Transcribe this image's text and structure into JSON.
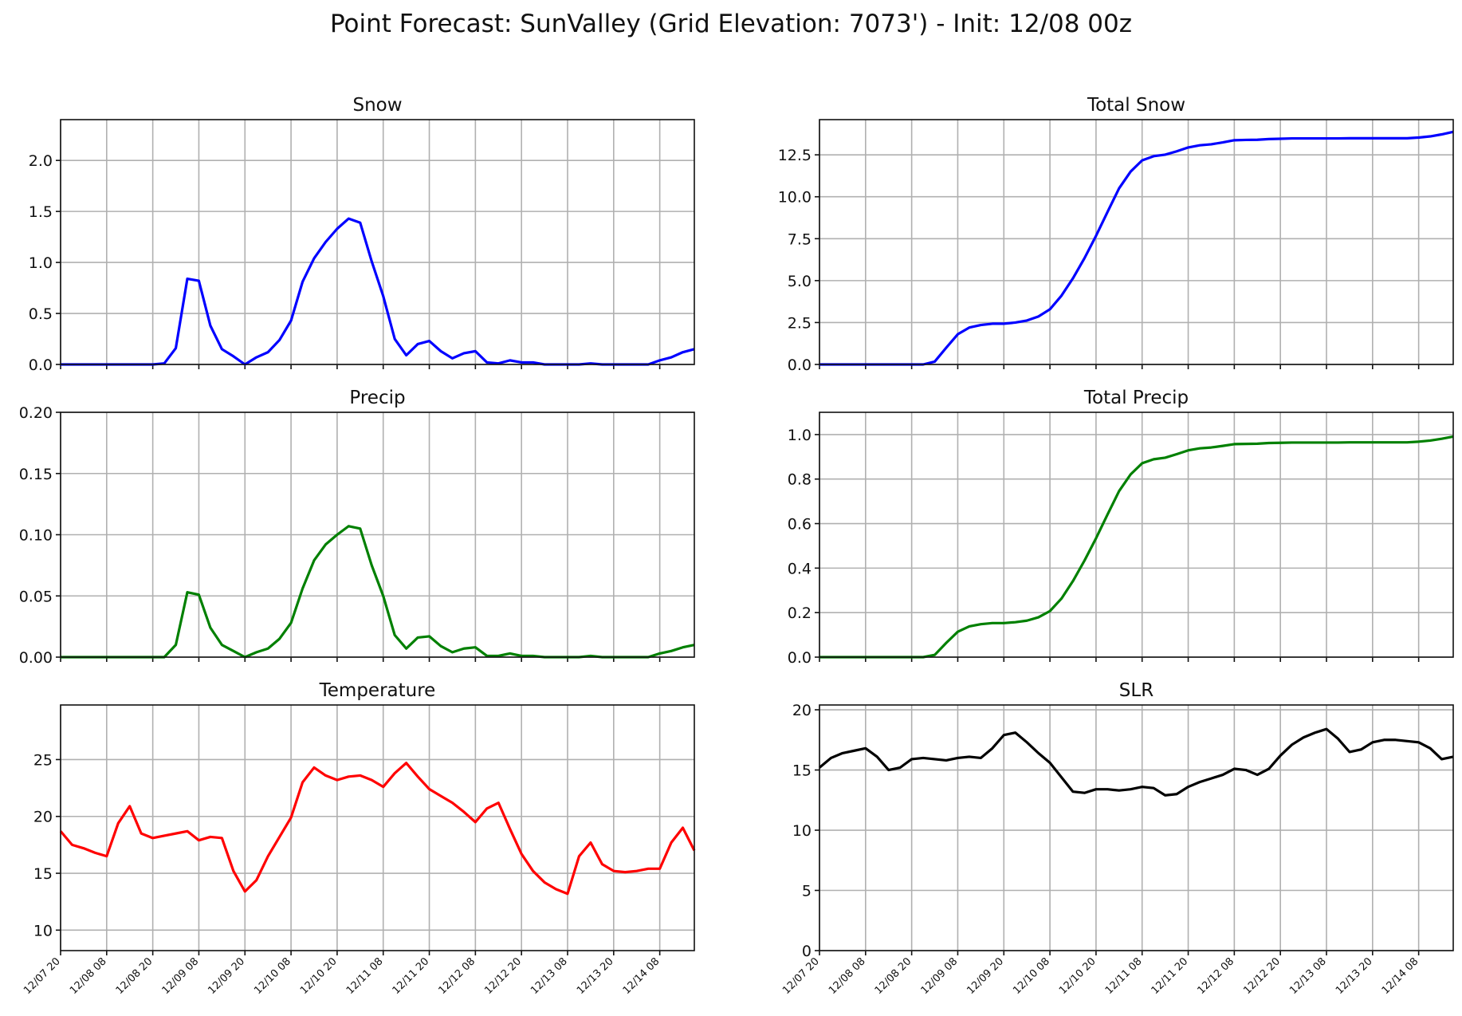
{
  "title": "Point Forecast: SunValley (Grid Elevation: 7073') - Init: 12/08 00z",
  "x_tick_labels": [
    "12/07 20",
    "12/08 08",
    "12/08 20",
    "12/09 08",
    "12/09 20",
    "12/10 08",
    "12/10 20",
    "12/11 08",
    "12/11 20",
    "12/12 08",
    "12/12 20",
    "12/13 08",
    "12/13 20",
    "12/14 08"
  ],
  "chart_data": [
    {
      "type": "line",
      "title": "Snow",
      "color": "#0000ff",
      "ylim": [
        0,
        2.4
      ],
      "yticks": [
        0.0,
        0.5,
        1.0,
        1.5,
        2.0
      ],
      "ytick_labels": [
        "0.0",
        "0.5",
        "1.0",
        "1.5",
        "2.0"
      ],
      "grid": true,
      "x_hours": [
        0,
        3,
        6,
        9,
        12,
        15,
        18,
        21,
        24,
        27,
        30,
        33,
        36,
        39,
        42,
        45,
        48,
        51,
        54,
        57,
        60,
        63,
        66,
        69,
        72,
        75,
        78,
        81,
        84,
        87,
        90,
        93,
        96,
        99,
        102,
        105,
        108,
        111,
        114,
        117,
        120,
        123,
        126,
        129,
        132,
        135,
        138,
        141,
        144,
        147,
        150,
        153,
        156,
        159,
        162,
        165
      ],
      "values": [
        0,
        0,
        0,
        0,
        0,
        0,
        0,
        0,
        0,
        0.01,
        0.16,
        0.84,
        0.82,
        0.38,
        0.15,
        0.08,
        0,
        0.07,
        0.12,
        0.24,
        0.43,
        0.81,
        1.04,
        1.2,
        1.33,
        1.43,
        1.39,
        1.01,
        0.67,
        0.25,
        0.09,
        0.2,
        0.23,
        0.13,
        0.06,
        0.11,
        0.13,
        0.02,
        0.01,
        0.04,
        0.02,
        0.02,
        0,
        0,
        0,
        0,
        0.01,
        0,
        0,
        0,
        0,
        0,
        0.04,
        0.07,
        0.12,
        0.15
      ]
    },
    {
      "type": "line",
      "title": "Total Snow",
      "color": "#0000ff",
      "ylim": [
        0,
        14.6
      ],
      "yticks": [
        0,
        2.5,
        5.0,
        7.5,
        10.0,
        12.5
      ],
      "ytick_labels": [
        "0.0",
        "2.5",
        "5.0",
        "7.5",
        "10.0",
        "12.5"
      ],
      "grid": true,
      "x_hours": [
        0,
        3,
        6,
        9,
        12,
        15,
        18,
        21,
        24,
        27,
        30,
        33,
        36,
        39,
        42,
        45,
        48,
        51,
        54,
        57,
        60,
        63,
        66,
        69,
        72,
        75,
        78,
        81,
        84,
        87,
        90,
        93,
        96,
        99,
        102,
        105,
        108,
        111,
        114,
        117,
        120,
        123,
        126,
        129,
        132,
        135,
        138,
        141,
        144,
        147,
        150,
        153,
        156,
        159,
        162,
        165
      ],
      "values": [
        0,
        0,
        0,
        0,
        0,
        0,
        0,
        0,
        0,
        0,
        0.17,
        1.0,
        1.8,
        2.2,
        2.35,
        2.43,
        2.43,
        2.5,
        2.62,
        2.86,
        3.29,
        4.1,
        5.14,
        6.34,
        7.67,
        9.1,
        10.5,
        11.5,
        12.17,
        12.42,
        12.51,
        12.71,
        12.94,
        13.07,
        13.13,
        13.24,
        13.37,
        13.39,
        13.4,
        13.44,
        13.46,
        13.48,
        13.48,
        13.48,
        13.48,
        13.48,
        13.49,
        13.49,
        13.49,
        13.49,
        13.49,
        13.49,
        13.53,
        13.6,
        13.72,
        13.87
      ]
    },
    {
      "type": "line",
      "title": "Precip",
      "color": "#008000",
      "ylim": [
        0,
        0.2
      ],
      "yticks": [
        0,
        0.05,
        0.1,
        0.15,
        0.2
      ],
      "ytick_labels": [
        "0.00",
        "0.05",
        "0.10",
        "0.15",
        "0.20"
      ],
      "grid": true,
      "x_hours": [
        0,
        3,
        6,
        9,
        12,
        15,
        18,
        21,
        24,
        27,
        30,
        33,
        36,
        39,
        42,
        45,
        48,
        51,
        54,
        57,
        60,
        63,
        66,
        69,
        72,
        75,
        78,
        81,
        84,
        87,
        90,
        93,
        96,
        99,
        102,
        105,
        108,
        111,
        114,
        117,
        120,
        123,
        126,
        129,
        132,
        135,
        138,
        141,
        144,
        147,
        150,
        153,
        156,
        159,
        162,
        165
      ],
      "values": [
        0,
        0,
        0,
        0,
        0,
        0,
        0,
        0,
        0,
        0,
        0.01,
        0.053,
        0.051,
        0.024,
        0.01,
        0.005,
        0,
        0.004,
        0.007,
        0.015,
        0.028,
        0.056,
        0.079,
        0.092,
        0.1,
        0.107,
        0.105,
        0.075,
        0.05,
        0.018,
        0.007,
        0.016,
        0.017,
        0.009,
        0.004,
        0.007,
        0.008,
        0.001,
        0.001,
        0.003,
        0.001,
        0.001,
        0,
        0,
        0,
        0,
        0.001,
        0,
        0,
        0,
        0,
        0,
        0.003,
        0.005,
        0.008,
        0.01
      ]
    },
    {
      "type": "line",
      "title": "Total Precip",
      "color": "#008000",
      "ylim": [
        0,
        1.1
      ],
      "yticks": [
        0,
        0.2,
        0.4,
        0.6,
        0.8,
        1.0
      ],
      "ytick_labels": [
        "0.0",
        "0.2",
        "0.4",
        "0.6",
        "0.8",
        "1.0"
      ],
      "grid": true,
      "x_hours": [
        0,
        3,
        6,
        9,
        12,
        15,
        18,
        21,
        24,
        27,
        30,
        33,
        36,
        39,
        42,
        45,
        48,
        51,
        54,
        57,
        60,
        63,
        66,
        69,
        72,
        75,
        78,
        81,
        84,
        87,
        90,
        93,
        96,
        99,
        102,
        105,
        108,
        111,
        114,
        117,
        120,
        123,
        126,
        129,
        132,
        135,
        138,
        141,
        144,
        147,
        150,
        153,
        156,
        159,
        162,
        165
      ],
      "values": [
        0,
        0,
        0,
        0,
        0,
        0,
        0,
        0,
        0,
        0,
        0.01,
        0.064,
        0.114,
        0.138,
        0.148,
        0.153,
        0.153,
        0.157,
        0.164,
        0.179,
        0.207,
        0.263,
        0.342,
        0.434,
        0.534,
        0.641,
        0.746,
        0.821,
        0.871,
        0.889,
        0.896,
        0.912,
        0.929,
        0.938,
        0.942,
        0.949,
        0.957,
        0.958,
        0.959,
        0.962,
        0.963,
        0.964,
        0.964,
        0.964,
        0.964,
        0.964,
        0.965,
        0.965,
        0.965,
        0.965,
        0.965,
        0.965,
        0.968,
        0.973,
        0.981,
        0.991
      ]
    },
    {
      "type": "line",
      "title": "Temperature",
      "color": "#ff0000",
      "ylim": [
        8.2,
        29.8
      ],
      "yticks": [
        10,
        15,
        20,
        25
      ],
      "ytick_labels": [
        "10",
        "15",
        "20",
        "25"
      ],
      "grid": true,
      "x_hours": [
        0,
        3,
        6,
        9,
        12,
        15,
        18,
        21,
        24,
        27,
        30,
        33,
        36,
        39,
        42,
        45,
        48,
        51,
        54,
        57,
        60,
        63,
        66,
        69,
        72,
        75,
        78,
        81,
        84,
        87,
        90,
        93,
        96,
        99,
        102,
        105,
        108,
        111,
        114,
        117,
        120,
        123,
        126,
        129,
        132,
        135,
        138,
        141,
        144,
        147,
        150,
        153,
        156,
        159,
        162,
        165
      ],
      "values": [
        18.7,
        17.5,
        17.2,
        16.8,
        16.5,
        19.4,
        20.9,
        18.5,
        18.1,
        18.3,
        18.5,
        18.7,
        17.9,
        18.2,
        18.1,
        15.2,
        13.4,
        14.4,
        16.5,
        18.2,
        19.9,
        23.0,
        24.3,
        23.6,
        23.2,
        23.5,
        23.6,
        23.2,
        22.6,
        23.8,
        24.7,
        23.5,
        22.4,
        21.8,
        21.2,
        20.4,
        19.5,
        20.7,
        21.2,
        18.9,
        16.7,
        15.2,
        14.2,
        13.6,
        13.2,
        16.5,
        17.7,
        15.8,
        15.2,
        15.1,
        15.2,
        15.4,
        15.4,
        17.7,
        19.0,
        17.0
      ]
    },
    {
      "type": "line",
      "title": "SLR",
      "color": "#000000",
      "ylim": [
        0,
        20.4
      ],
      "yticks": [
        0,
        5,
        10,
        15,
        20
      ],
      "ytick_labels": [
        "0",
        "5",
        "10",
        "15",
        "20"
      ],
      "grid": true,
      "x_hours": [
        0,
        3,
        6,
        9,
        12,
        15,
        18,
        21,
        24,
        27,
        30,
        33,
        36,
        39,
        42,
        45,
        48,
        51,
        54,
        57,
        60,
        63,
        66,
        69,
        72,
        75,
        78,
        81,
        84,
        87,
        90,
        93,
        96,
        99,
        102,
        105,
        108,
        111,
        114,
        117,
        120,
        123,
        126,
        129,
        132,
        135,
        138,
        141,
        144,
        147,
        150,
        153,
        156,
        159,
        162,
        165
      ],
      "values": [
        15.2,
        16.0,
        16.4,
        16.6,
        16.8,
        16.1,
        15.0,
        15.2,
        15.9,
        16.0,
        15.9,
        15.8,
        16.0,
        16.1,
        16.0,
        16.8,
        17.9,
        18.1,
        17.3,
        16.4,
        15.6,
        14.4,
        13.2,
        13.1,
        13.4,
        13.4,
        13.3,
        13.4,
        13.6,
        13.5,
        12.9,
        13.0,
        13.6,
        14.0,
        14.3,
        14.6,
        15.1,
        15.0,
        14.6,
        15.1,
        16.2,
        17.1,
        17.7,
        18.1,
        18.4,
        17.6,
        16.5,
        16.7,
        17.3,
        17.5,
        17.5,
        17.4,
        17.3,
        16.8,
        15.9,
        16.1
      ]
    }
  ]
}
